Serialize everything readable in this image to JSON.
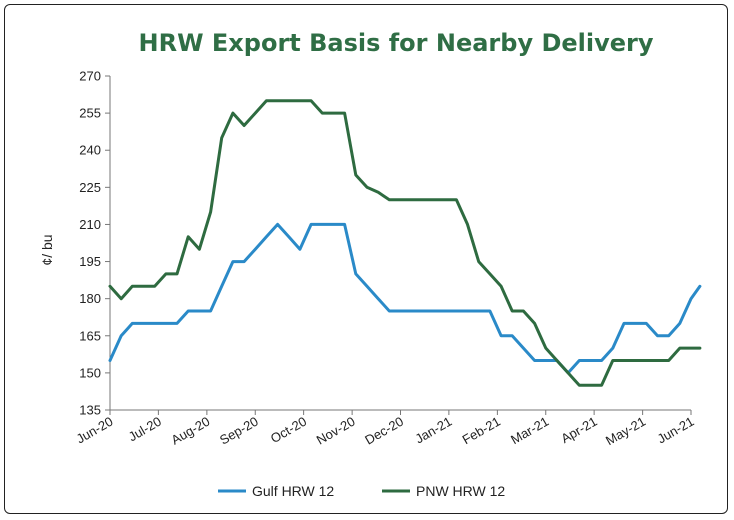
{
  "chart_data": {
    "type": "line",
    "title": "HRW Export Basis for Nearby Delivery",
    "ylabel": "¢/ bu",
    "xlabel": "",
    "ylim": [
      135,
      270
    ],
    "yticks": [
      135,
      150,
      165,
      180,
      195,
      210,
      225,
      240,
      255,
      270
    ],
    "xlim": [
      0,
      52
    ],
    "xticks": [
      {
        "label": "Jun-20",
        "x": 0
      },
      {
        "label": "Jul-20",
        "x": 4.33
      },
      {
        "label": "Aug-20",
        "x": 8.67
      },
      {
        "label": "Sep-20",
        "x": 13
      },
      {
        "label": "Oct-20",
        "x": 17.33
      },
      {
        "label": "Nov-20",
        "x": 21.67
      },
      {
        "label": "Dec-20",
        "x": 26
      },
      {
        "label": "Jan-21",
        "x": 30.33
      },
      {
        "label": "Feb-21",
        "x": 34.67
      },
      {
        "label": "Mar-21",
        "x": 39
      },
      {
        "label": "Apr-21",
        "x": 43.33
      },
      {
        "label": "May-21",
        "x": 47.67
      },
      {
        "label": "Jun-21",
        "x": 52
      }
    ],
    "grid": false,
    "legend": "bottom",
    "series": [
      {
        "name": "Gulf HRW 12",
        "color": "#2a8ac8",
        "points": [
          [
            0,
            155
          ],
          [
            1,
            165
          ],
          [
            2,
            170
          ],
          [
            3,
            170
          ],
          [
            4,
            170
          ],
          [
            5,
            170
          ],
          [
            6,
            170
          ],
          [
            7,
            175
          ],
          [
            8,
            175
          ],
          [
            9,
            175
          ],
          [
            10,
            185
          ],
          [
            11,
            195
          ],
          [
            12,
            195
          ],
          [
            13,
            200
          ],
          [
            14,
            205
          ],
          [
            15,
            210
          ],
          [
            16,
            205
          ],
          [
            17,
            200
          ],
          [
            18,
            210
          ],
          [
            19,
            210
          ],
          [
            20,
            210
          ],
          [
            21,
            210
          ],
          [
            22,
            190
          ],
          [
            23,
            185
          ],
          [
            24,
            180
          ],
          [
            25,
            175
          ],
          [
            26,
            175
          ],
          [
            27,
            175
          ],
          [
            28,
            175
          ],
          [
            29,
            175
          ],
          [
            30,
            175
          ],
          [
            31,
            175
          ],
          [
            32,
            175
          ],
          [
            33,
            175
          ],
          [
            34,
            175
          ],
          [
            35,
            165
          ],
          [
            36,
            165
          ],
          [
            37,
            160
          ],
          [
            38,
            155
          ],
          [
            39,
            155
          ],
          [
            40,
            155
          ],
          [
            41,
            150
          ],
          [
            42,
            155
          ],
          [
            43,
            155
          ],
          [
            44,
            155
          ],
          [
            45,
            160
          ],
          [
            46,
            170
          ],
          [
            47,
            170
          ],
          [
            48,
            170
          ],
          [
            49,
            165
          ],
          [
            50,
            165
          ],
          [
            51,
            170
          ],
          [
            52,
            180
          ],
          [
            52.8,
            185
          ]
        ]
      },
      {
        "name": "PNW HRW 12",
        "color": "#2e6b40",
        "points": [
          [
            0,
            185
          ],
          [
            1,
            180
          ],
          [
            2,
            185
          ],
          [
            3,
            185
          ],
          [
            4,
            185
          ],
          [
            5,
            190
          ],
          [
            6,
            190
          ],
          [
            7,
            205
          ],
          [
            8,
            200
          ],
          [
            9,
            215
          ],
          [
            10,
            245
          ],
          [
            11,
            255
          ],
          [
            12,
            250
          ],
          [
            13,
            255
          ],
          [
            14,
            260
          ],
          [
            15,
            260
          ],
          [
            16,
            260
          ],
          [
            17,
            260
          ],
          [
            18,
            260
          ],
          [
            19,
            255
          ],
          [
            20,
            255
          ],
          [
            21,
            255
          ],
          [
            22,
            230
          ],
          [
            23,
            225
          ],
          [
            24,
            223
          ],
          [
            25,
            220
          ],
          [
            26,
            220
          ],
          [
            27,
            220
          ],
          [
            28,
            220
          ],
          [
            29,
            220
          ],
          [
            30,
            220
          ],
          [
            31,
            220
          ],
          [
            32,
            210
          ],
          [
            33,
            195
          ],
          [
            34,
            190
          ],
          [
            35,
            185
          ],
          [
            36,
            175
          ],
          [
            37,
            175
          ],
          [
            38,
            170
          ],
          [
            39,
            160
          ],
          [
            40,
            155
          ],
          [
            41,
            150
          ],
          [
            42,
            145
          ],
          [
            43,
            145
          ],
          [
            44,
            145
          ],
          [
            45,
            155
          ],
          [
            46,
            155
          ],
          [
            47,
            155
          ],
          [
            48,
            155
          ],
          [
            49,
            155
          ],
          [
            50,
            155
          ],
          [
            51,
            160
          ],
          [
            52,
            160
          ],
          [
            52.8,
            160
          ]
        ]
      }
    ]
  }
}
